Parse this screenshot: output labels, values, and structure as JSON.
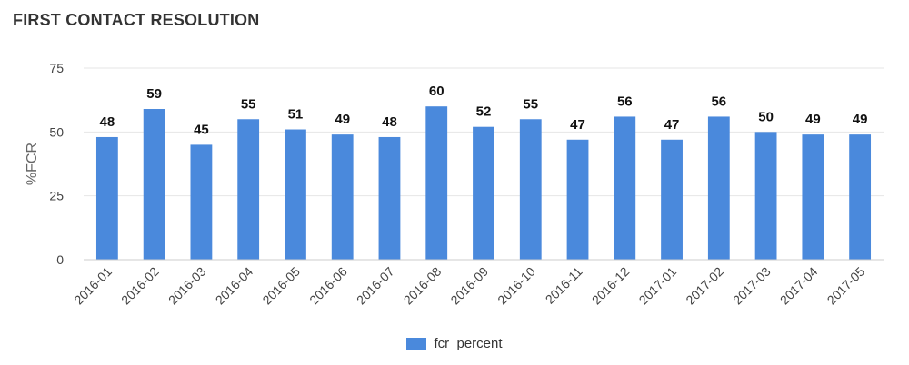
{
  "title": "FIRST CONTACT RESOLUTION",
  "chart_data": {
    "type": "bar",
    "title": "FIRST CONTACT RESOLUTION",
    "xlabel": "",
    "ylabel": "%FCR",
    "ylim": [
      0,
      75
    ],
    "yticks": [
      0,
      25,
      50,
      75
    ],
    "grid": true,
    "legend_position": "bottom",
    "categories": [
      "2016-01",
      "2016-02",
      "2016-03",
      "2016-04",
      "2016-05",
      "2016-06",
      "2016-07",
      "2016-08",
      "2016-09",
      "2016-10",
      "2016-11",
      "2016-12",
      "2017-01",
      "2017-02",
      "2017-03",
      "2017-04",
      "2017-05"
    ],
    "series": [
      {
        "name": "fcr_percent",
        "color": "#4a89dc",
        "values": [
          48,
          59,
          45,
          55,
          51,
          49,
          48,
          60,
          52,
          55,
          47,
          56,
          47,
          56,
          50,
          49,
          49
        ]
      }
    ]
  }
}
